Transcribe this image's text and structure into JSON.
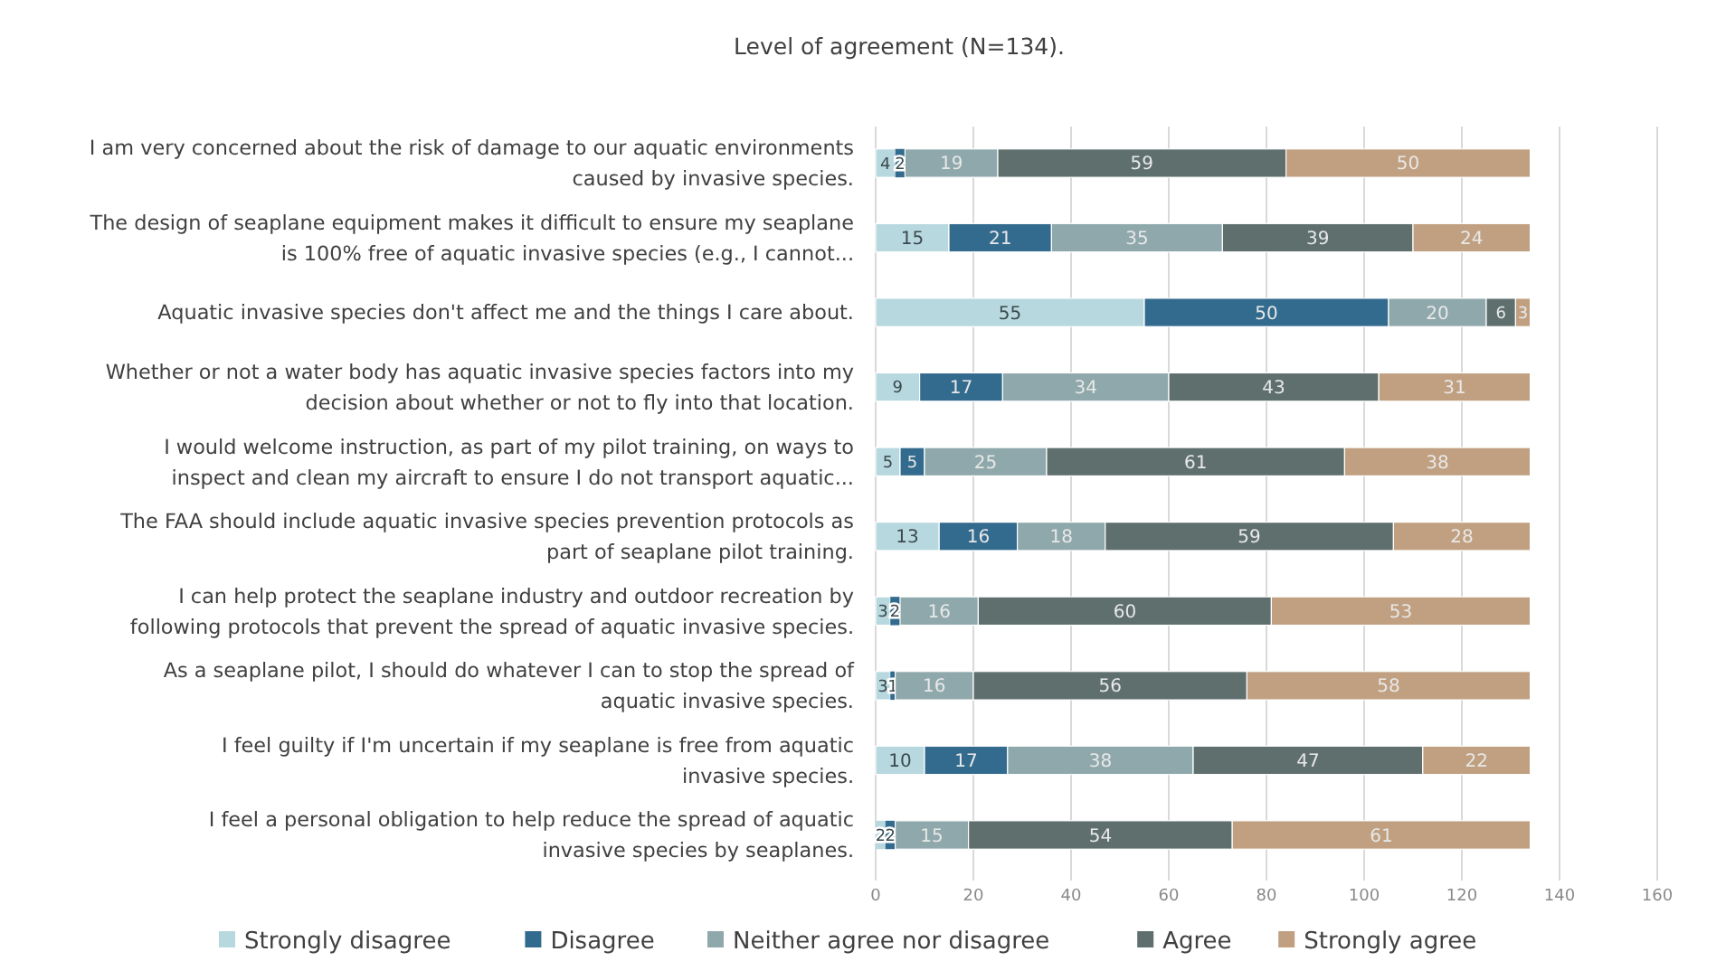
{
  "chart_data": {
    "type": "bar",
    "orientation": "horizontal",
    "stacked": true,
    "title": "Level of agreement (N=134).",
    "categories": [
      "I am very concerned about the risk of damage to our aquatic environments caused by invasive species.",
      "The design of seaplane equipment makes it difficult to ensure my seaplane is 100% free of aquatic invasive species (e.g., I cannot...",
      "Aquatic invasive species don't affect me and the things I care about.",
      "Whether or not a water body has aquatic invasive species factors into my decision about whether or not to fly into that location.",
      "I would welcome instruction, as part of my pilot training, on ways to inspect and clean my aircraft to ensure I do not transport aquatic...",
      "The FAA should include aquatic invasive species prevention protocols as part of seaplane pilot training.",
      "I can help protect the seaplane industry and outdoor recreation by following protocols that prevent the spread of aquatic invasive species.",
      "As a seaplane pilot, I should do whatever I can to stop the spread of aquatic invasive species.",
      "I feel guilty if I'm uncertain if my seaplane is free from aquatic invasive species.",
      "I feel a personal obligation to help reduce the spread of aquatic invasive species by seaplanes."
    ],
    "series": [
      {
        "name": "Strongly disagree",
        "color": "#b8d8df",
        "values": [
          4,
          15,
          55,
          9,
          5,
          13,
          3,
          3,
          10,
          2
        ]
      },
      {
        "name": "Disagree",
        "color": "#336b8f",
        "values": [
          2,
          21,
          50,
          17,
          5,
          16,
          2,
          1,
          17,
          2
        ]
      },
      {
        "name": "Neither agree nor disagree",
        "color": "#8fa8ab",
        "values": [
          19,
          35,
          20,
          34,
          25,
          18,
          16,
          16,
          38,
          15
        ]
      },
      {
        "name": "Agree",
        "color": "#5e6f6e",
        "values": [
          59,
          39,
          6,
          43,
          61,
          59,
          60,
          56,
          47,
          54
        ]
      },
      {
        "name": "Strongly agree",
        "color": "#c0a080",
        "values": [
          50,
          24,
          3,
          31,
          38,
          28,
          53,
          58,
          22,
          61
        ]
      }
    ],
    "xlim": [
      0,
      160
    ],
    "xticks": [
      0,
      20,
      40,
      60,
      80,
      100,
      120,
      140,
      160
    ],
    "grid": "x",
    "legend": "bottom",
    "data_labels": true
  }
}
